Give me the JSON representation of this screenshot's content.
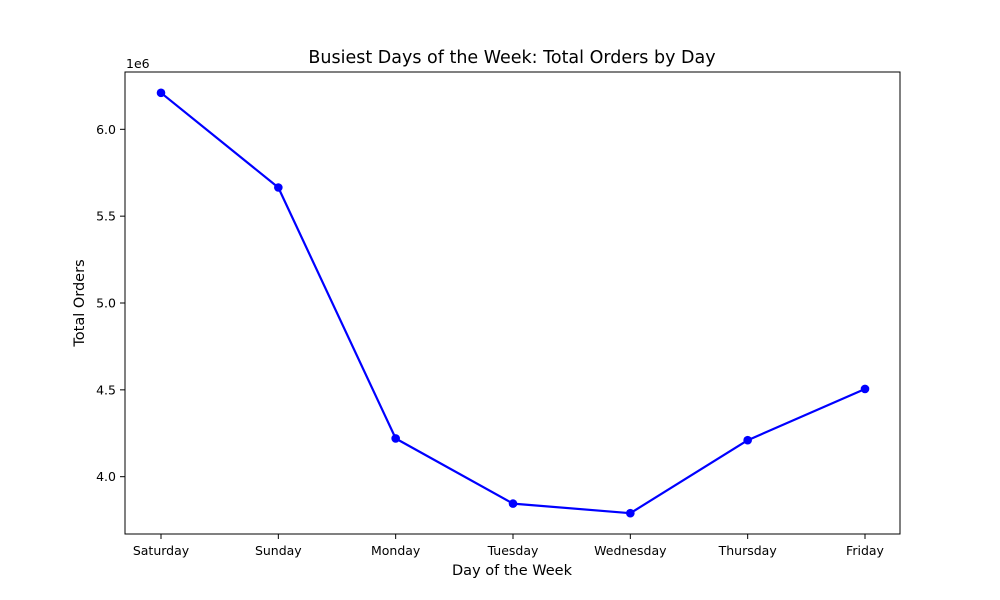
{
  "chart_data": {
    "type": "line",
    "title": "Busiest Days of the Week: Total Orders by Day",
    "xlabel": "Day of the Week",
    "ylabel": "Total Orders",
    "y_offset_label": "1e6",
    "categories": [
      "Saturday",
      "Sunday",
      "Monday",
      "Tuesday",
      "Wednesday",
      "Thursday",
      "Friday"
    ],
    "series": [
      {
        "values": [
          6210000,
          5665000,
          4220000,
          3845000,
          3790000,
          4210000,
          4505000
        ],
        "color": "#0000ff",
        "marker": "circle"
      }
    ],
    "ylim": [
      3670000,
      6330000
    ],
    "yticks": [
      4.0,
      4.5,
      5.0,
      5.5,
      6.0
    ],
    "ytick_labels": [
      "4.0",
      "4.5",
      "5.0",
      "5.5",
      "6.0"
    ],
    "ytick_scale": 1000000,
    "grid": false,
    "legend": false
  }
}
